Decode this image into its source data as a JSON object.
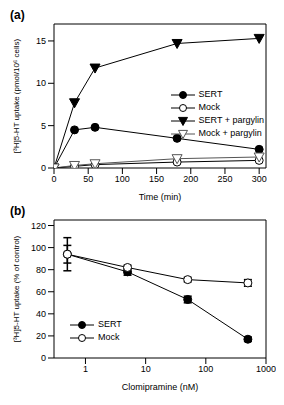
{
  "chart_data": [
    {
      "type": "line",
      "title": "(a)",
      "x_label": "Time (min)",
      "y_label": "[³H]5-HT uptake (pmol/10⁶ cells)",
      "x": [
        0,
        30,
        60,
        180,
        300
      ],
      "xlim": [
        0,
        310
      ],
      "xticks": [
        0,
        50,
        100,
        150,
        200,
        250,
        300
      ],
      "ylim": [
        0,
        17
      ],
      "yticks": [
        0,
        5,
        10,
        15
      ],
      "legend": "right",
      "series": [
        {
          "name": "SERT",
          "color": "#000000",
          "marker": "filled_circle",
          "values": [
            0,
            4.5,
            4.8,
            3.5,
            2.2
          ]
        },
        {
          "name": "Mock",
          "color": "#000000",
          "marker": "open_circle",
          "values": [
            0,
            0.2,
            0.4,
            0.7,
            0.9
          ]
        },
        {
          "name": "SERT + pargylin",
          "color": "#000000",
          "marker": "filled_triangle_down",
          "values": [
            0,
            7.7,
            11.8,
            14.7,
            15.3
          ]
        },
        {
          "name": "Mock + pargylin",
          "color": "#555555",
          "marker": "open_triangle_down",
          "values": [
            0,
            0.3,
            0.5,
            1.1,
            1.3
          ]
        }
      ]
    },
    {
      "type": "line",
      "title": "(b)",
      "x_label": "Clomipramine (nM)",
      "y_label": "[³H]5-HT uptake (% of control)",
      "log": "x",
      "x": [
        0.5,
        5,
        50,
        500
      ],
      "xlim": [
        0.3,
        1000
      ],
      "xticks": [
        1,
        10,
        100,
        1000
      ],
      "ylim": [
        0,
        125
      ],
      "yticks": [
        0,
        20,
        40,
        60,
        80,
        100,
        120
      ],
      "legend": "lower left",
      "series": [
        {
          "name": "SERT",
          "color": "#000000",
          "marker": "filled_circle",
          "values": [
            94,
            78,
            53,
            17
          ],
          "error": [
            15,
            3,
            3,
            2
          ]
        },
        {
          "name": "Mock",
          "color": "#000000",
          "marker": "open_circle",
          "values": [
            94,
            82,
            71,
            68
          ],
          "error": [
            8,
            2,
            2,
            3
          ]
        }
      ]
    }
  ]
}
